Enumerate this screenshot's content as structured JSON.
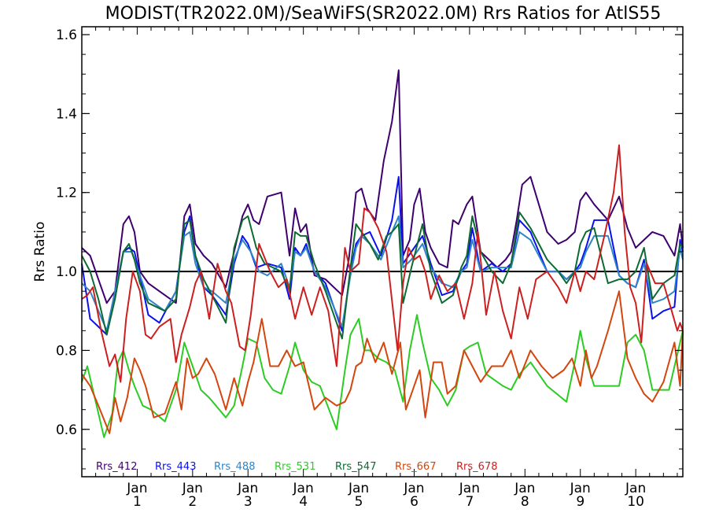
{
  "chart_data": {
    "type": "line",
    "title": "MODIST(TR2022.0M)/SeaWiFS(SR2022.0M)  Rrs Ratios for AtlS55",
    "xlabel": "",
    "ylabel": "Rrs Ratio",
    "xlim": [
      0,
      10.85
    ],
    "ylim": [
      0.48,
      1.62
    ],
    "yticks": [
      0.6,
      0.8,
      1.0,
      1.2,
      1.4,
      1.6
    ],
    "ytick_labels": [
      "0.6",
      "0.8",
      "1.0",
      "1.2",
      "1.4",
      "1.6"
    ],
    "xticks": [
      1,
      2,
      3,
      4,
      5,
      6,
      7,
      8,
      9,
      10
    ],
    "xtick_month": "Jan",
    "xtick_labels": [
      "1",
      "2",
      "3",
      "4",
      "5",
      "6",
      "7",
      "8",
      "9",
      "10"
    ],
    "reference_line": 1.0,
    "legend_position": "bottom-left",
    "series": [
      {
        "name": "Rrs_412",
        "color": "#3f006f",
        "x": [
          0,
          0.15,
          0.3,
          0.45,
          0.6,
          0.75,
          0.85,
          0.95,
          1.05,
          1.2,
          1.4,
          1.7,
          1.85,
          1.95,
          2.05,
          2.1,
          2.2,
          2.35,
          2.6,
          2.75,
          2.9,
          3.0,
          3.1,
          3.2,
          3.35,
          3.6,
          3.75,
          3.85,
          3.95,
          4.05,
          4.2,
          4.4,
          4.7,
          4.82,
          4.95,
          5.05,
          5.15,
          5.3,
          5.45,
          5.6,
          5.72,
          5.8,
          5.92,
          6.0,
          6.1,
          6.2,
          6.3,
          6.45,
          6.6,
          6.7,
          6.8,
          6.95,
          7.05,
          7.2,
          7.35,
          7.5,
          7.65,
          7.75,
          7.85,
          7.95,
          8.1,
          8.4,
          8.6,
          8.75,
          8.9,
          9.0,
          9.1,
          9.25,
          9.5,
          9.7,
          9.85,
          10.0,
          10.15,
          10.3,
          10.5,
          10.7,
          10.8,
          10.85
        ],
        "y": [
          1.06,
          1.04,
          0.98,
          0.92,
          0.95,
          1.12,
          1.14,
          1.1,
          1.0,
          0.97,
          0.95,
          0.92,
          1.14,
          1.17,
          1.07,
          1.06,
          1.04,
          1.02,
          0.96,
          1.05,
          1.14,
          1.17,
          1.13,
          1.12,
          1.19,
          1.2,
          1.04,
          1.16,
          1.1,
          1.12,
          0.99,
          0.98,
          0.94,
          1.03,
          1.2,
          1.21,
          1.16,
          1.13,
          1.28,
          1.38,
          1.51,
          1.04,
          1.08,
          1.17,
          1.21,
          1.1,
          1.06,
          1.02,
          1.01,
          1.13,
          1.12,
          1.17,
          1.19,
          1.05,
          1.03,
          1.01,
          1.03,
          1.05,
          1.13,
          1.22,
          1.24,
          1.1,
          1.07,
          1.08,
          1.1,
          1.18,
          1.2,
          1.17,
          1.13,
          1.19,
          1.11,
          1.06,
          1.08,
          1.1,
          1.09,
          1.04,
          1.12,
          1.06
        ]
      },
      {
        "name": "Rrs_443",
        "color": "#0a10ee",
        "x": [
          0,
          0.15,
          0.45,
          0.6,
          0.75,
          0.85,
          0.95,
          1.05,
          1.2,
          1.4,
          1.7,
          1.85,
          1.95,
          2.05,
          2.2,
          2.35,
          2.6,
          2.75,
          2.9,
          3.0,
          3.15,
          3.35,
          3.6,
          3.75,
          3.85,
          3.95,
          4.05,
          4.2,
          4.4,
          4.7,
          4.85,
          4.95,
          5.05,
          5.2,
          5.4,
          5.6,
          5.72,
          5.8,
          5.95,
          6.15,
          6.3,
          6.5,
          6.7,
          6.85,
          6.95,
          7.05,
          7.2,
          7.4,
          7.6,
          7.75,
          7.9,
          8.1,
          8.4,
          8.6,
          8.75,
          8.9,
          9.0,
          9.1,
          9.25,
          9.5,
          9.7,
          9.85,
          10.0,
          10.15,
          10.3,
          10.5,
          10.7,
          10.8,
          10.85
        ],
        "y": [
          1.02,
          0.88,
          0.84,
          0.94,
          1.05,
          1.06,
          1.05,
          0.99,
          0.89,
          0.87,
          0.95,
          1.1,
          1.14,
          1.04,
          0.96,
          0.94,
          0.89,
          1.02,
          1.09,
          1.07,
          1.01,
          1.02,
          1.01,
          0.93,
          1.06,
          1.04,
          1.07,
          1.0,
          0.97,
          0.85,
          1.0,
          1.07,
          1.09,
          1.1,
          1.04,
          1.13,
          1.24,
          1.02,
          1.05,
          1.09,
          1.02,
          0.94,
          0.95,
          1.0,
          1.02,
          1.11,
          1.0,
          1.02,
          1.0,
          1.02,
          1.13,
          1.1,
          1.0,
          1.0,
          0.98,
          1.0,
          1.02,
          1.06,
          1.13,
          1.13,
          0.99,
          0.97,
          0.96,
          1.03,
          0.88,
          0.9,
          0.91,
          1.08,
          1.05
        ]
      },
      {
        "name": "Rrs_488",
        "color": "#2f85c8",
        "x": [
          0,
          0.15,
          0.45,
          0.6,
          0.75,
          0.9,
          1.05,
          1.2,
          1.5,
          1.7,
          1.85,
          1.95,
          2.05,
          2.2,
          2.35,
          2.6,
          2.75,
          2.9,
          3.05,
          3.2,
          3.35,
          3.6,
          3.75,
          3.85,
          3.95,
          4.05,
          4.2,
          4.4,
          4.7,
          4.85,
          4.95,
          5.05,
          5.2,
          5.4,
          5.6,
          5.72,
          5.8,
          5.95,
          6.15,
          6.3,
          6.5,
          6.7,
          6.85,
          6.95,
          7.05,
          7.2,
          7.4,
          7.6,
          7.75,
          7.9,
          8.1,
          8.4,
          8.6,
          8.75,
          8.9,
          9.0,
          9.1,
          9.25,
          9.5,
          9.7,
          9.85,
          10.0,
          10.15,
          10.3,
          10.5,
          10.7,
          10.8,
          10.85
        ],
        "y": [
          0.97,
          0.95,
          0.85,
          0.95,
          1.05,
          1.05,
          0.99,
          0.93,
          0.9,
          0.95,
          1.09,
          1.1,
          1.02,
          0.96,
          0.95,
          0.92,
          1.03,
          1.08,
          1.05,
          1.0,
          0.99,
          1.02,
          0.96,
          1.05,
          1.04,
          1.06,
          1.0,
          0.96,
          0.86,
          0.99,
          1.06,
          1.09,
          1.07,
          1.03,
          1.1,
          1.14,
          1.01,
          1.03,
          1.07,
          1.01,
          0.97,
          0.96,
          1.0,
          1.01,
          1.08,
          1.0,
          1.01,
          1.01,
          1.01,
          1.1,
          1.08,
          1.0,
          1.0,
          0.98,
          1.0,
          1.01,
          1.05,
          1.09,
          1.09,
          0.99,
          0.97,
          0.96,
          1.02,
          0.92,
          0.93,
          0.95,
          1.06,
          1.03
        ]
      },
      {
        "name": "Rrs_531",
        "color": "#2ccc24",
        "x": [
          0,
          0.1,
          0.2,
          0.4,
          0.55,
          0.65,
          0.75,
          0.85,
          0.95,
          1.1,
          1.25,
          1.5,
          1.7,
          1.85,
          1.95,
          2.05,
          2.15,
          2.3,
          2.6,
          2.75,
          2.9,
          3.0,
          3.15,
          3.3,
          3.45,
          3.6,
          3.75,
          3.85,
          4.0,
          4.15,
          4.3,
          4.6,
          4.75,
          4.85,
          5.0,
          5.1,
          5.2,
          5.35,
          5.5,
          5.65,
          5.8,
          5.92,
          6.05,
          6.15,
          6.3,
          6.45,
          6.6,
          6.75,
          6.9,
          7.0,
          7.15,
          7.3,
          7.6,
          7.75,
          7.9,
          8.1,
          8.4,
          8.75,
          8.9,
          9.0,
          9.1,
          9.25,
          9.5,
          9.7,
          9.85,
          10.0,
          10.15,
          10.3,
          10.6,
          10.85
        ],
        "y": [
          0.72,
          0.76,
          0.7,
          0.58,
          0.64,
          0.77,
          0.8,
          0.75,
          0.71,
          0.66,
          0.65,
          0.62,
          0.7,
          0.82,
          0.78,
          0.74,
          0.7,
          0.68,
          0.63,
          0.66,
          0.76,
          0.83,
          0.82,
          0.73,
          0.7,
          0.69,
          0.76,
          0.82,
          0.75,
          0.72,
          0.71,
          0.6,
          0.75,
          0.84,
          0.88,
          0.8,
          0.8,
          0.78,
          0.77,
          0.75,
          0.67,
          0.8,
          0.89,
          0.82,
          0.73,
          0.7,
          0.66,
          0.7,
          0.8,
          0.81,
          0.82,
          0.74,
          0.71,
          0.7,
          0.74,
          0.77,
          0.71,
          0.67,
          0.77,
          0.85,
          0.78,
          0.71,
          0.71,
          0.71,
          0.82,
          0.84,
          0.8,
          0.7,
          0.7,
          0.85
        ]
      },
      {
        "name": "Rrs_547",
        "color": "#0d6a32",
        "x": [
          0,
          0.15,
          0.3,
          0.45,
          0.6,
          0.75,
          0.85,
          0.95,
          1.05,
          1.2,
          1.5,
          1.7,
          1.85,
          1.95,
          2.05,
          2.2,
          2.35,
          2.6,
          2.75,
          2.9,
          3.0,
          3.15,
          3.3,
          3.6,
          3.75,
          3.85,
          3.95,
          4.05,
          4.2,
          4.4,
          4.7,
          4.85,
          4.95,
          5.05,
          5.2,
          5.35,
          5.5,
          5.6,
          5.72,
          5.8,
          5.95,
          6.15,
          6.3,
          6.5,
          6.7,
          6.85,
          6.95,
          7.05,
          7.2,
          7.4,
          7.6,
          7.75,
          7.9,
          8.1,
          8.4,
          8.6,
          8.75,
          8.9,
          9.0,
          9.1,
          9.25,
          9.5,
          9.7,
          9.85,
          10.0,
          10.15,
          10.3,
          10.5,
          10.7,
          10.8,
          10.85
        ],
        "y": [
          1.04,
          1.0,
          0.93,
          0.84,
          0.93,
          1.05,
          1.07,
          1.03,
          0.97,
          0.92,
          0.9,
          0.93,
          1.12,
          1.13,
          1.04,
          0.98,
          0.94,
          0.87,
          1.06,
          1.13,
          1.14,
          1.06,
          1.02,
          1.0,
          0.95,
          1.1,
          1.09,
          1.09,
          1.02,
          0.95,
          0.83,
          1.01,
          1.12,
          1.1,
          1.07,
          1.03,
          1.09,
          1.1,
          1.12,
          0.92,
          1.01,
          1.12,
          1.0,
          0.92,
          0.94,
          1.01,
          1.04,
          1.14,
          1.05,
          1.0,
          0.97,
          1.02,
          1.15,
          1.11,
          1.03,
          1.0,
          0.97,
          1.0,
          1.07,
          1.1,
          1.11,
          0.97,
          0.98,
          0.98,
          1.0,
          1.06,
          0.93,
          0.97,
          0.99,
          1.07,
          1.06
        ]
      },
      {
        "name": "Rrs_667",
        "color": "#d4460c",
        "x": [
          0,
          0.15,
          0.3,
          0.5,
          0.6,
          0.7,
          0.82,
          0.95,
          1.05,
          1.15,
          1.3,
          1.5,
          1.7,
          1.8,
          1.9,
          2.0,
          2.1,
          2.25,
          2.4,
          2.6,
          2.75,
          2.9,
          3.0,
          3.1,
          3.25,
          3.4,
          3.55,
          3.7,
          3.85,
          4.0,
          4.2,
          4.4,
          4.6,
          4.75,
          4.85,
          4.95,
          5.05,
          5.15,
          5.3,
          5.45,
          5.6,
          5.75,
          5.85,
          5.95,
          6.1,
          6.2,
          6.35,
          6.5,
          6.6,
          6.75,
          6.9,
          7.05,
          7.2,
          7.4,
          7.6,
          7.75,
          7.9,
          8.1,
          8.3,
          8.5,
          8.7,
          8.85,
          9.0,
          9.1,
          9.2,
          9.3,
          9.5,
          9.7,
          9.85,
          10.0,
          10.15,
          10.3,
          10.5,
          10.7,
          10.8,
          10.85
        ],
        "y": [
          0.74,
          0.71,
          0.66,
          0.59,
          0.68,
          0.62,
          0.68,
          0.78,
          0.75,
          0.71,
          0.63,
          0.64,
          0.72,
          0.65,
          0.78,
          0.73,
          0.74,
          0.78,
          0.74,
          0.65,
          0.73,
          0.66,
          0.72,
          0.77,
          0.88,
          0.76,
          0.76,
          0.8,
          0.76,
          0.77,
          0.65,
          0.68,
          0.66,
          0.67,
          0.7,
          0.76,
          0.77,
          0.83,
          0.77,
          0.82,
          0.74,
          0.82,
          0.65,
          0.69,
          0.75,
          0.63,
          0.77,
          0.77,
          0.69,
          0.71,
          0.8,
          0.76,
          0.72,
          0.76,
          0.76,
          0.8,
          0.73,
          0.8,
          0.76,
          0.73,
          0.75,
          0.78,
          0.71,
          0.8,
          0.73,
          0.76,
          0.85,
          0.95,
          0.78,
          0.73,
          0.69,
          0.67,
          0.72,
          0.82,
          0.71,
          0.85
        ]
      },
      {
        "name": "Rrs_678",
        "color": "#cc2020",
        "x": [
          0,
          0.1,
          0.2,
          0.35,
          0.5,
          0.6,
          0.7,
          0.8,
          0.92,
          1.05,
          1.15,
          1.25,
          1.4,
          1.6,
          1.7,
          1.8,
          1.95,
          2.05,
          2.15,
          2.3,
          2.45,
          2.6,
          2.7,
          2.85,
          2.95,
          3.05,
          3.2,
          3.4,
          3.55,
          3.7,
          3.85,
          4.0,
          4.15,
          4.3,
          4.45,
          4.6,
          4.75,
          4.85,
          5.0,
          5.1,
          5.2,
          5.35,
          5.5,
          5.7,
          5.8,
          5.9,
          6.0,
          6.1,
          6.2,
          6.3,
          6.45,
          6.6,
          6.75,
          6.9,
          7.05,
          7.15,
          7.3,
          7.45,
          7.6,
          7.75,
          7.9,
          8.05,
          8.2,
          8.4,
          8.6,
          8.75,
          8.9,
          9.0,
          9.1,
          9.25,
          9.45,
          9.6,
          9.7,
          9.8,
          9.9,
          10.0,
          10.1,
          10.2,
          10.35,
          10.5,
          10.65,
          10.75,
          10.8,
          10.85
        ],
        "y": [
          0.93,
          0.94,
          0.96,
          0.85,
          0.76,
          0.79,
          0.72,
          0.88,
          1.0,
          0.95,
          0.84,
          0.83,
          0.86,
          0.88,
          0.77,
          0.84,
          0.91,
          0.97,
          1.0,
          0.88,
          1.02,
          0.95,
          0.92,
          0.81,
          0.8,
          0.89,
          1.07,
          1.0,
          0.96,
          0.98,
          0.88,
          0.96,
          0.89,
          0.96,
          0.9,
          0.76,
          1.06,
          1.0,
          1.02,
          1.16,
          1.15,
          1.11,
          1.05,
          0.8,
          0.97,
          1.06,
          1.03,
          1.04,
          1.0,
          0.93,
          0.99,
          0.95,
          0.97,
          0.88,
          0.97,
          1.1,
          0.89,
          1.0,
          0.9,
          0.83,
          0.96,
          0.88,
          0.98,
          1.0,
          0.96,
          0.92,
          1.0,
          0.95,
          1.0,
          0.98,
          1.1,
          1.2,
          1.32,
          1.1,
          0.96,
          0.92,
          0.82,
          1.02,
          0.97,
          0.97,
          0.9,
          0.85,
          0.87,
          0.85
        ]
      }
    ]
  }
}
